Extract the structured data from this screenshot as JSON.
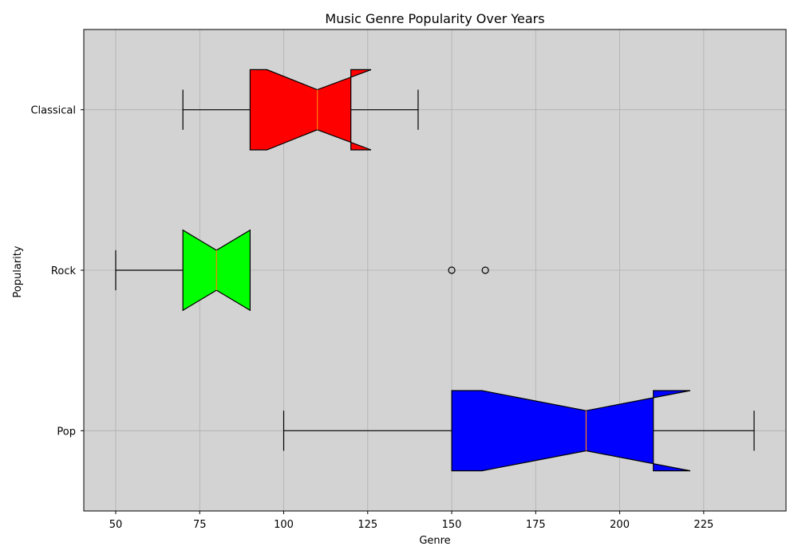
{
  "chart_data": {
    "type": "boxplot",
    "orientation": "horizontal",
    "notched": true,
    "title": "Music Genre Popularity Over Years",
    "xlabel": "Genre",
    "ylabel": "Popularity",
    "xlim": [
      40.5,
      249.5
    ],
    "xticks": [
      50,
      75,
      100,
      125,
      150,
      175,
      200,
      225
    ],
    "grid": true,
    "background": "#d3d3d3",
    "median_color": "#ff7f0e",
    "categories": [
      "Pop",
      "Rock",
      "Classical"
    ],
    "series": [
      {
        "name": "Pop",
        "color": "#0000ff",
        "whisker_low": 100,
        "q1": 150,
        "median": 190,
        "q3": 210,
        "whisker_high": 240,
        "notch_low": 159,
        "notch_high": 221,
        "outliers": []
      },
      {
        "name": "Rock",
        "color": "#00ff00",
        "whisker_low": 50,
        "q1": 70,
        "median": 80,
        "q3": 90,
        "whisker_high": 90,
        "notch_low": 70,
        "notch_high": 90,
        "outliers": [
          150,
          160
        ]
      },
      {
        "name": "Classical",
        "color": "#ff0000",
        "whisker_low": 70,
        "q1": 90,
        "median": 110,
        "q3": 120,
        "whisker_high": 140,
        "notch_low": 95,
        "notch_high": 126,
        "outliers": []
      }
    ]
  }
}
